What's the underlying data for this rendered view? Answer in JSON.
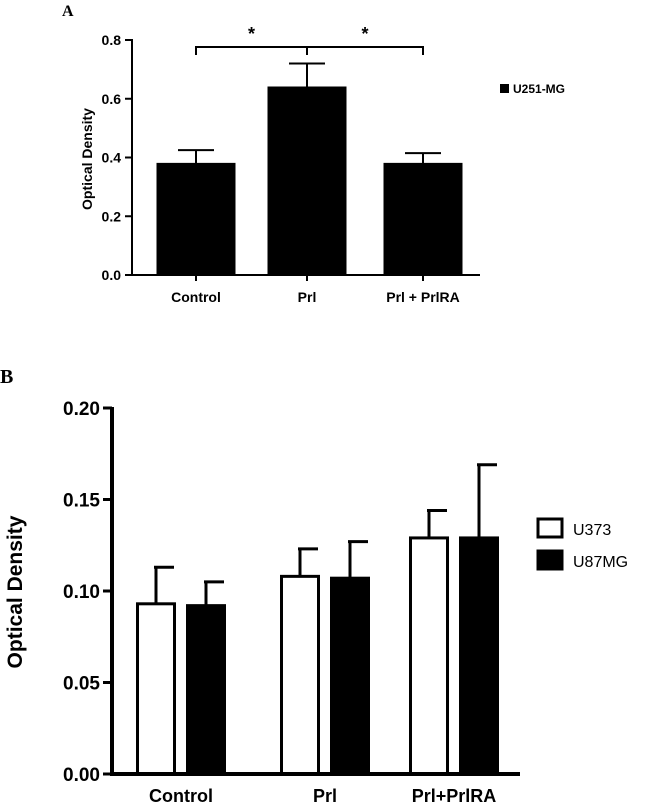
{
  "chart_data": [
    {
      "type": "bar",
      "panel_label": "A",
      "categories": [
        "Control",
        "Prl",
        "Prl + PrlRA"
      ],
      "series": [
        {
          "name": "U251-MG",
          "values": [
            0.38,
            0.64,
            0.38
          ],
          "errors": [
            0.045,
            0.08,
            0.035
          ],
          "fill": "#000000"
        }
      ],
      "ylabel": "Optical Density",
      "ylim": [
        0,
        0.8
      ],
      "yticks": [
        "0.0",
        "0.2",
        "0.4",
        "0.6",
        "0.8"
      ],
      "ytick_values": [
        0,
        0.2,
        0.4,
        0.6,
        0.8
      ],
      "significance": [
        {
          "from": 0,
          "to": 1,
          "label": "*"
        },
        {
          "from": 1,
          "to": 2,
          "label": "*"
        }
      ],
      "legend_position": "top-right",
      "grid": false
    },
    {
      "type": "bar",
      "panel_label": "B",
      "categories": [
        "Control",
        "Prl",
        "Prl+PrlRA"
      ],
      "series": [
        {
          "name": "U373",
          "values": [
            0.093,
            0.108,
            0.129
          ],
          "errors": [
            0.02,
            0.015,
            0.015
          ],
          "fill": "#ffffff"
        },
        {
          "name": "U87MG",
          "values": [
            0.092,
            0.107,
            0.129
          ],
          "errors": [
            0.013,
            0.02,
            0.04
          ],
          "fill": "#000000"
        }
      ],
      "ylabel": "Optical Density",
      "ylim": [
        0,
        0.2
      ],
      "yticks": [
        "0.00",
        "0.05",
        "0.10",
        "0.15",
        "0.20"
      ],
      "ytick_values": [
        0,
        0.05,
        0.1,
        0.15,
        0.2
      ],
      "legend_position": "right",
      "grid": false
    }
  ]
}
